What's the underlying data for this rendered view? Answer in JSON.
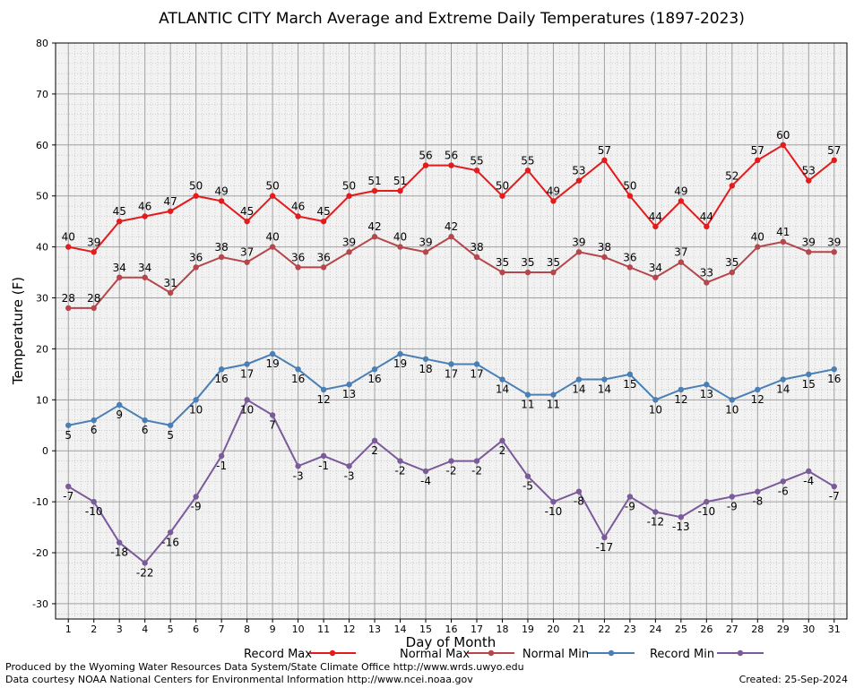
{
  "chart_data": {
    "type": "line",
    "title": "ATLANTIC CITY March Average and Extreme Daily Temperatures (1897-2023)",
    "xlabel": "Day of Month",
    "ylabel": "Temperature (F)",
    "ylim": [
      -33,
      80
    ],
    "xlim": [
      0.5,
      31.5
    ],
    "y_ticks": [
      -30,
      -20,
      -10,
      0,
      10,
      20,
      30,
      40,
      50,
      60,
      70,
      80
    ],
    "x_ticks": [
      1,
      2,
      3,
      4,
      5,
      6,
      7,
      8,
      9,
      10,
      11,
      12,
      13,
      14,
      15,
      16,
      17,
      18,
      19,
      20,
      21,
      22,
      23,
      24,
      25,
      26,
      27,
      28,
      29,
      30,
      31
    ],
    "grid": true,
    "legend_position": "bottom",
    "series": [
      {
        "name": "Record Max",
        "color": "#e41a1c",
        "label_position": "above",
        "values": [
          40,
          39,
          45,
          46,
          47,
          50,
          49,
          45,
          50,
          46,
          45,
          50,
          51,
          51,
          56,
          56,
          55,
          50,
          55,
          49,
          53,
          57,
          50,
          44,
          49,
          44,
          52,
          57,
          60,
          53,
          57
        ]
      },
      {
        "name": "Normal Max",
        "color": "#b5464b",
        "label_position": "above",
        "values": [
          28,
          28,
          34,
          34,
          31,
          36,
          38,
          37,
          40,
          36,
          36,
          39,
          42,
          40,
          39,
          42,
          38,
          35,
          35,
          35,
          39,
          38,
          36,
          34,
          37,
          33,
          35,
          40,
          41,
          39,
          39
        ]
      },
      {
        "name": "Normal Min",
        "color": "#4a7fb5",
        "label_position": "below",
        "values": [
          5,
          6,
          9,
          6,
          5,
          10,
          16,
          17,
          19,
          16,
          12,
          13,
          16,
          19,
          18,
          17,
          17,
          14,
          11,
          11,
          14,
          14,
          15,
          10,
          12,
          13,
          10,
          12,
          14,
          15,
          16
        ]
      },
      {
        "name": "Record Min",
        "color": "#7b5a9a",
        "label_position": "below",
        "values": [
          -7,
          -10,
          -18,
          -22,
          -16,
          -9,
          -1,
          10,
          7,
          -3,
          -1,
          -3,
          2,
          -2,
          -4,
          -2,
          -2,
          2,
          -5,
          -10,
          -8,
          -17,
          -9,
          -12,
          -13,
          -10,
          -9,
          -8,
          -6,
          -4,
          -7
        ]
      }
    ]
  },
  "footer": {
    "produced_by": "Produced by the Wyoming Water Resources Data System/State Climate Office http://www.wrds.uwyo.edu",
    "data_courtesy": "Data courtesy NOAA National Centers for Environmental Information http://www.ncei.noaa.gov",
    "created": "Created:  25-Sep-2024"
  }
}
